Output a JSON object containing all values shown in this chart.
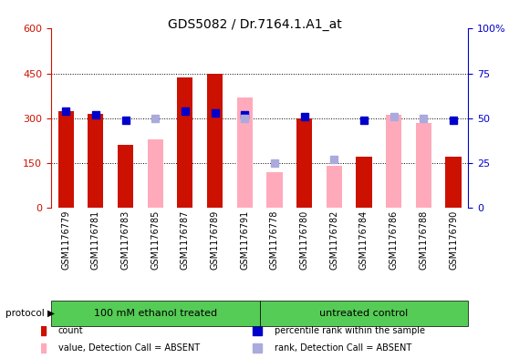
{
  "title": "GDS5082 / Dr.7164.1.A1_at",
  "samples": [
    "GSM1176779",
    "GSM1176781",
    "GSM1176783",
    "GSM1176785",
    "GSM1176787",
    "GSM1176789",
    "GSM1176791",
    "GSM1176778",
    "GSM1176780",
    "GSM1176782",
    "GSM1176784",
    "GSM1176786",
    "GSM1176788",
    "GSM1176790"
  ],
  "group1_label": "100 mM ethanol treated",
  "group2_label": "untreated control",
  "group1_count": 7,
  "group2_count": 7,
  "count_values": [
    325,
    315,
    210,
    null,
    435,
    450,
    null,
    null,
    300,
    null,
    170,
    null,
    null,
    170
  ],
  "absent_value": [
    null,
    null,
    null,
    230,
    null,
    null,
    370,
    120,
    null,
    140,
    null,
    310,
    285,
    null
  ],
  "rank_values": [
    325,
    315,
    295,
    null,
    325,
    325,
    315,
    null,
    310,
    null,
    295,
    null,
    null,
    295
  ],
  "absent_rank": [
    null,
    null,
    null,
    300,
    null,
    null,
    300,
    150,
    null,
    165,
    null,
    305,
    300,
    null
  ],
  "ylim_left": [
    0,
    600
  ],
  "ylim_right": [
    0,
    100
  ],
  "left_ticks": [
    0,
    150,
    300,
    450,
    600
  ],
  "right_ticks": [
    0,
    25,
    50,
    75,
    100
  ],
  "right_tick_labels": [
    "0",
    "25",
    "50",
    "75",
    "100%"
  ],
  "color_red": "#cc1100",
  "color_pink": "#ffaabb",
  "color_blue": "#0000cc",
  "color_lightblue": "#aaaadd",
  "color_green": "#55cc55",
  "color_bg_ticks": "#dddddd",
  "color_white": "#ffffff"
}
